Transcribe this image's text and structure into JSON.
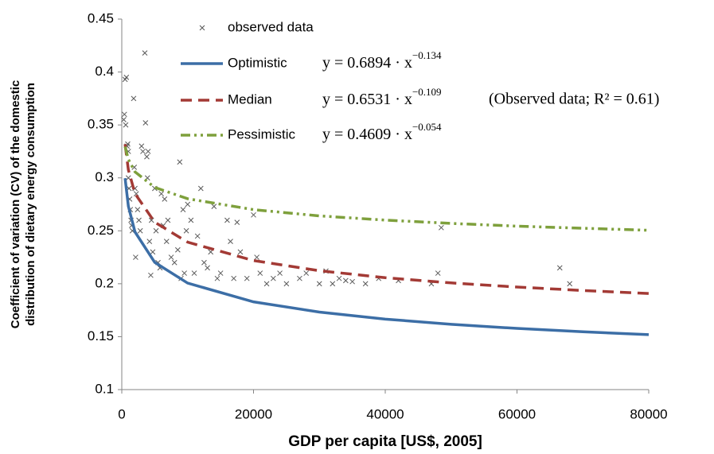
{
  "chart_data": {
    "type": "scatter",
    "xlabel": "GDP per capita [US$, 2005]",
    "ylabel": [
      "Coefficient of variation (CV) of the domestic",
      "distribution of dietary energy consumption"
    ],
    "xlim": [
      0,
      80000
    ],
    "ylim": [
      0.1,
      0.45
    ],
    "xticks": [
      0,
      20000,
      40000,
      60000,
      80000
    ],
    "yticks": [
      0.1,
      0.15,
      0.2,
      0.25,
      0.3,
      0.35,
      0.4,
      0.45
    ],
    "grid": false,
    "series": [
      {
        "name": "observed data",
        "type": "scatter",
        "color": "#595959",
        "x": [
          300,
          400,
          500,
          700,
          600,
          800,
          900,
          1000,
          1000,
          1100,
          1200,
          1300,
          1400,
          1500,
          1600,
          1800,
          1900,
          2000,
          2100,
          2200,
          2400,
          2600,
          2800,
          3000,
          3200,
          3500,
          3600,
          3800,
          3900,
          4000,
          4200,
          4400,
          4500,
          4700,
          5000,
          5200,
          5500,
          5800,
          6000,
          6300,
          6500,
          6800,
          7000,
          7500,
          8000,
          8500,
          8800,
          9000,
          9300,
          9500,
          9800,
          10000,
          10500,
          11000,
          11500,
          12000,
          12500,
          13000,
          13500,
          14000,
          14500,
          15000,
          16000,
          16500,
          17000,
          17500,
          18000,
          19000,
          20000,
          20500,
          21000,
          22000,
          23000,
          24000,
          25000,
          27000,
          28000,
          30000,
          31000,
          32000,
          33000,
          34000,
          35000,
          37000,
          39000,
          42000,
          47000,
          48000,
          48500,
          66500,
          68000
        ],
        "values": [
          0.355,
          0.36,
          0.393,
          0.395,
          0.35,
          0.33,
          0.332,
          0.325,
          0.3,
          0.29,
          0.28,
          0.27,
          0.26,
          0.255,
          0.25,
          0.375,
          0.31,
          0.29,
          0.225,
          0.285,
          0.27,
          0.26,
          0.25,
          0.33,
          0.325,
          0.418,
          0.352,
          0.32,
          0.3,
          0.325,
          0.24,
          0.208,
          0.26,
          0.23,
          0.29,
          0.25,
          0.22,
          0.215,
          0.285,
          0.255,
          0.28,
          0.24,
          0.26,
          0.225,
          0.22,
          0.232,
          0.315,
          0.205,
          0.27,
          0.21,
          0.25,
          0.275,
          0.26,
          0.21,
          0.245,
          0.29,
          0.22,
          0.215,
          0.23,
          0.273,
          0.205,
          0.21,
          0.26,
          0.24,
          0.205,
          0.258,
          0.23,
          0.205,
          0.265,
          0.225,
          0.21,
          0.2,
          0.205,
          0.21,
          0.2,
          0.205,
          0.21,
          0.2,
          0.212,
          0.2,
          0.205,
          0.203,
          0.202,
          0.2,
          0.205,
          0.203,
          0.2,
          0.21,
          0.253,
          0.215,
          0.2
        ]
      },
      {
        "name": "Optimistic",
        "type": "line",
        "color": "#3c6ea6",
        "dash": "solid",
        "x": [
          500,
          1000,
          2000,
          5000,
          10000,
          20000,
          30000,
          40000,
          50000,
          60000,
          70000,
          80000
        ],
        "values": [
          0.2997,
          0.2732,
          0.249,
          0.2202,
          0.2006,
          0.1829,
          0.1732,
          0.1666,
          0.1617,
          0.1578,
          0.1546,
          0.1519
        ]
      },
      {
        "name": "Median",
        "type": "line",
        "color": "#a33a35",
        "dash": "dashed",
        "x": [
          500,
          1000,
          2000,
          5000,
          10000,
          20000,
          30000,
          40000,
          50000,
          60000,
          70000,
          80000
        ],
        "values": [
          0.3318,
          0.3076,
          0.2852,
          0.2581,
          0.2393,
          0.2219,
          0.2123,
          0.2057,
          0.2008,
          0.1969,
          0.1936,
          0.1908
        ]
      },
      {
        "name": "Pessimistic",
        "type": "line",
        "color": "#7ea03c",
        "dash": "dash-dot-dot",
        "x": [
          500,
          1000,
          2000,
          5000,
          10000,
          20000,
          30000,
          40000,
          50000,
          60000,
          70000,
          80000
        ],
        "values": [
          0.3295,
          0.3174,
          0.3057,
          0.291,
          0.2803,
          0.27,
          0.2641,
          0.2601,
          0.257,
          0.2544,
          0.2524,
          0.2505
        ]
      }
    ],
    "annotations": [
      {
        "text": "y = 0.6894 · x",
        "sup": "−0.134"
      },
      {
        "text": "y = 0.6531 · x",
        "sup": "−0.109"
      },
      {
        "text": "y = 0.4609 · x",
        "sup": "−0.054"
      },
      {
        "text": "(Observed data; R² = 0.61)"
      }
    ]
  }
}
